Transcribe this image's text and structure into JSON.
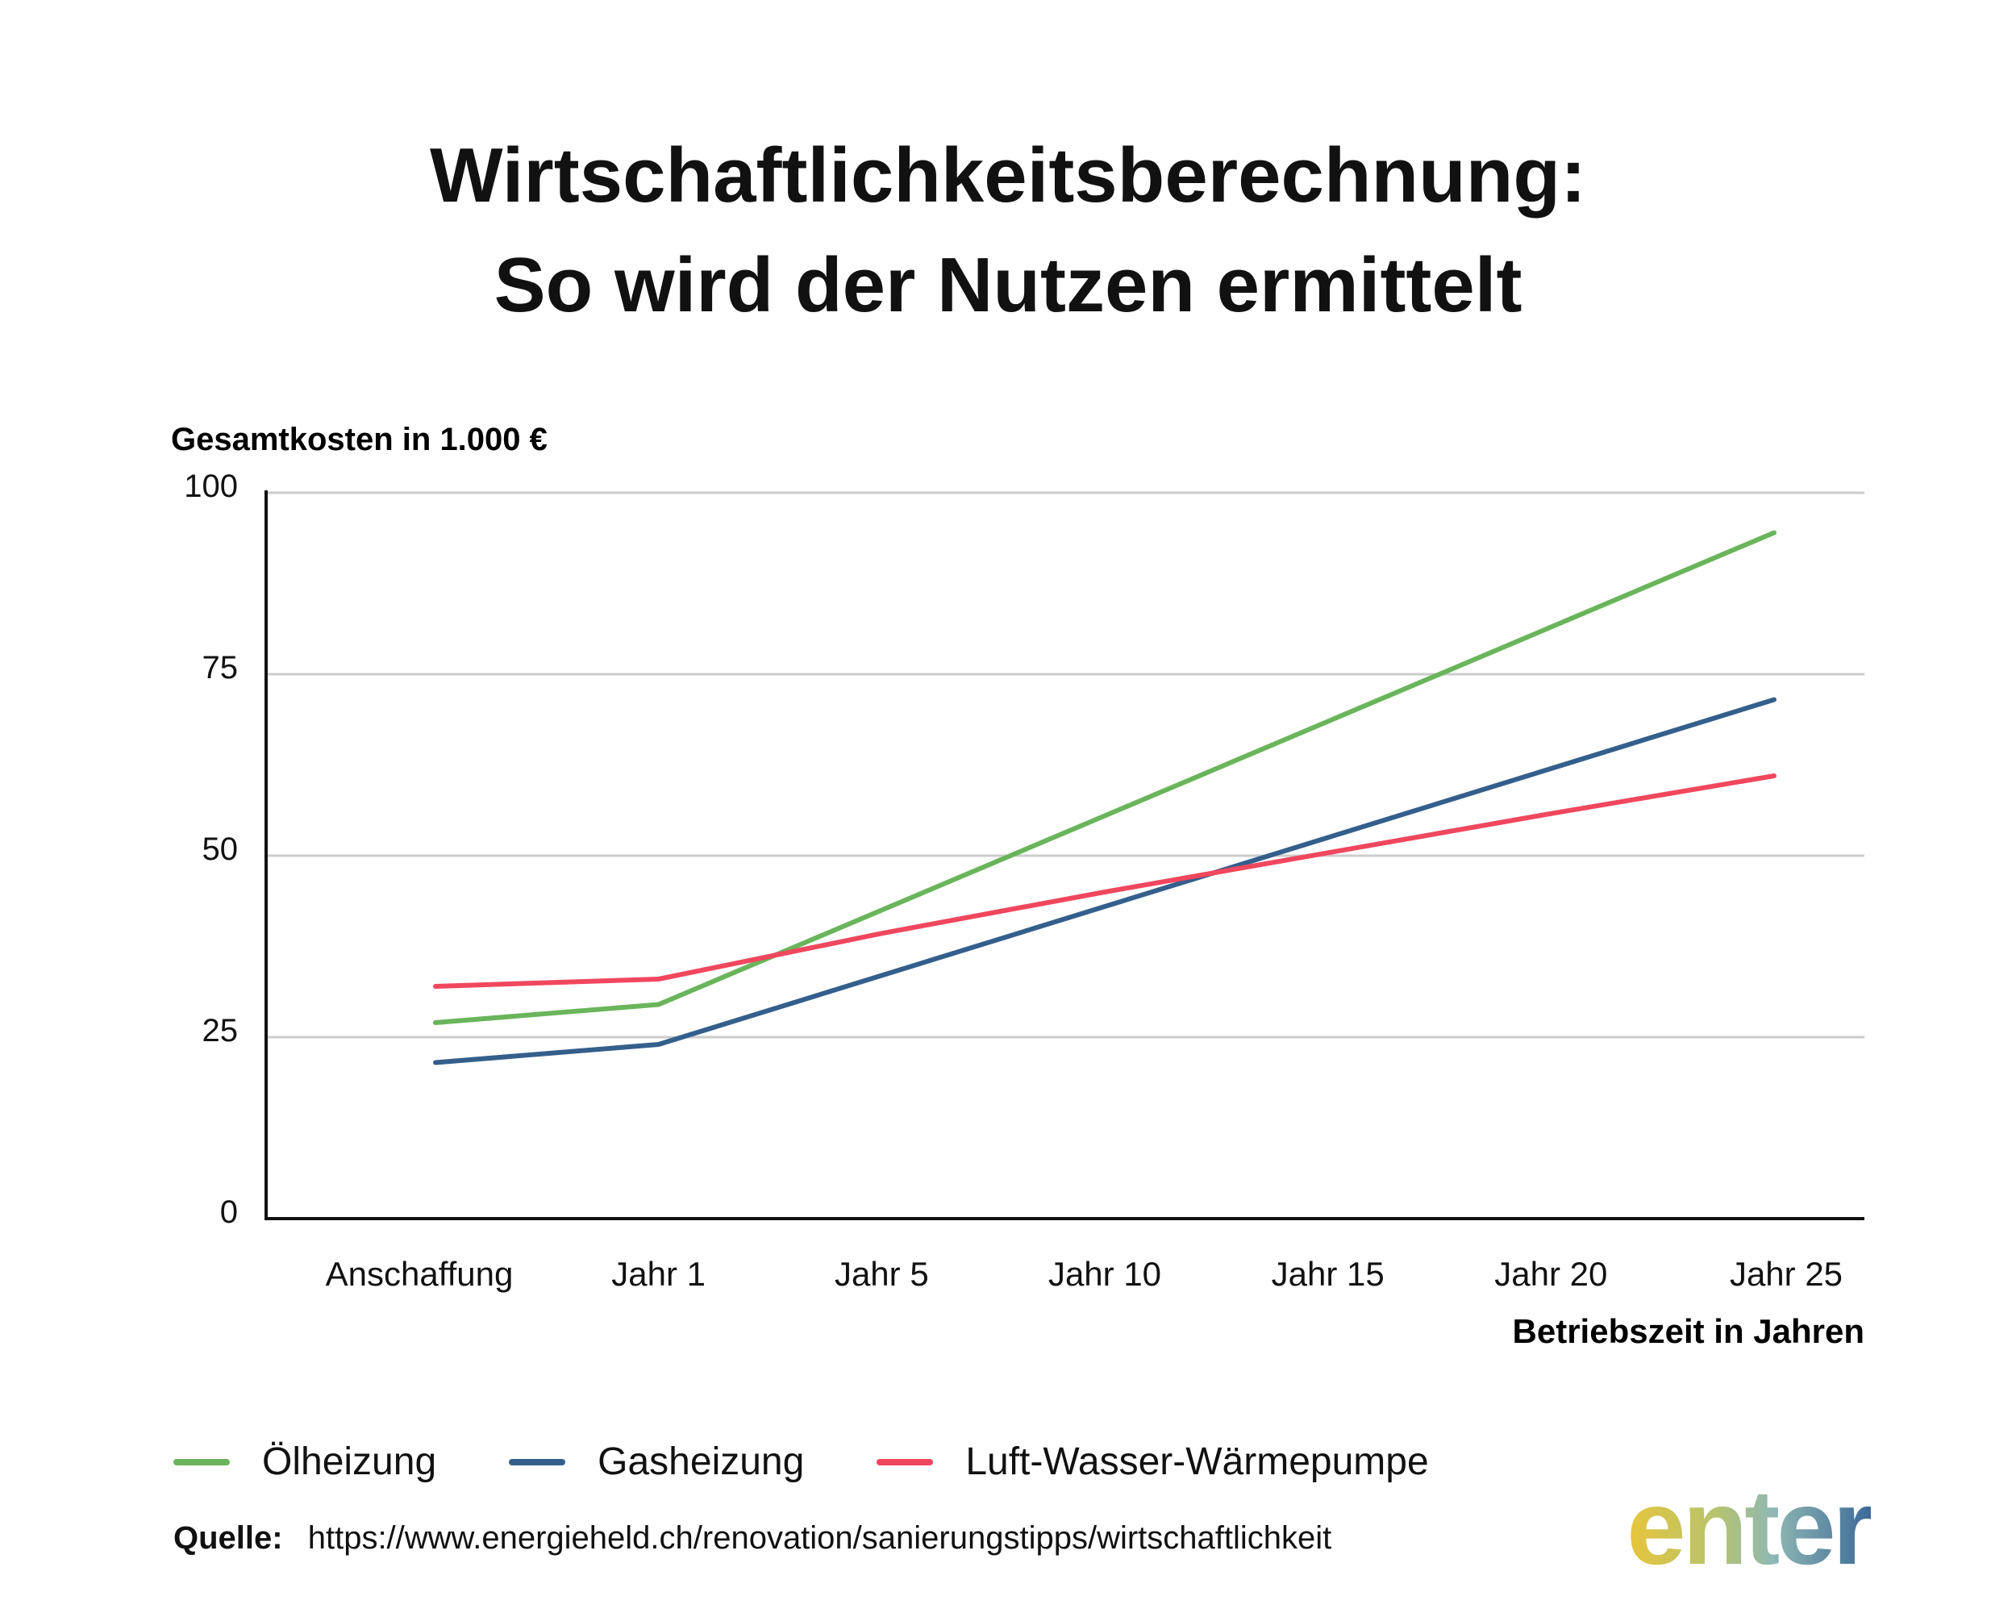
{
  "title_line1": "Wirtschaftlichkeitsberechnung:",
  "title_line2": "So wird der Nutzen ermittelt",
  "logo_text": "enter",
  "source": {
    "label": "Quelle:",
    "url": "https://www.energieheld.ch/renovation/sanierungstipps/wirtschaftlichkeit"
  },
  "chart_data": {
    "type": "line",
    "title": "Wirtschaftlichkeitsberechnung: So wird der Nutzen ermittelt",
    "ylabel": "Gesamtkosten in 1.000 €",
    "xlabel": "Betriebszeit in Jahren",
    "ylim": [
      0,
      100
    ],
    "yticks": [
      0,
      25,
      50,
      75,
      100
    ],
    "grid": true,
    "legend_position": "bottom",
    "categories": [
      "Anschaffung",
      "Jahr 1",
      "Jahr 5",
      "Jahr 10",
      "Jahr 15",
      "Jahr 20",
      "Jahr 25"
    ],
    "series": [
      {
        "name": "Ölheizung",
        "color": "#6ab55b",
        "values": [
          27,
          29.5,
          42.5,
          55.5,
          68.5,
          81.5,
          94.5
        ]
      },
      {
        "name": "Gasheizung",
        "color": "#345f8c",
        "values": [
          21.5,
          24,
          33.5,
          43,
          52.5,
          62,
          71.5
        ]
      },
      {
        "name": "Luft-Wasser-Wärmepumpe",
        "color": "#f0475e",
        "values": [
          32,
          33,
          39.3,
          45,
          50.4,
          55.8,
          61
        ]
      }
    ]
  }
}
